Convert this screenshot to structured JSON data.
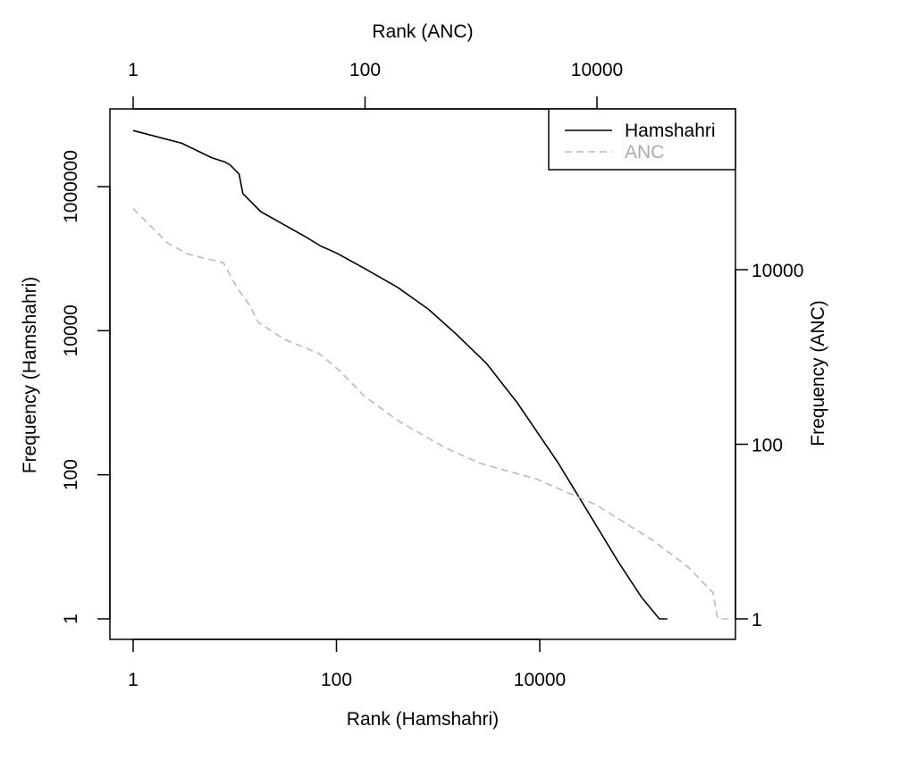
{
  "chart_data": {
    "type": "line",
    "title": "",
    "x_bottom": {
      "label": "Rank (Hamshahri)",
      "scale": "log",
      "range": [
        1,
        300000
      ],
      "ticks": [
        1,
        100,
        10000
      ],
      "tick_labels": [
        "1",
        "100",
        "10000"
      ]
    },
    "x_top": {
      "label": "Rank (ANC)",
      "scale": "log",
      "range": [
        1,
        150000
      ],
      "ticks": [
        1,
        100,
        10000
      ],
      "tick_labels": [
        "1",
        "100",
        "10000"
      ]
    },
    "y_left": {
      "label": "Frequency (Hamshahri)",
      "scale": "log",
      "range": [
        0.6,
        15000000
      ],
      "ticks": [
        1,
        100,
        10000,
        1000000
      ],
      "tick_labels": [
        "1",
        "100",
        "10000",
        "1000000"
      ]
    },
    "y_right": {
      "label": "Frequency (ANC)",
      "scale": "log",
      "range": [
        0.7,
        150000
      ],
      "ticks": [
        1,
        100,
        10000
      ],
      "tick_labels": [
        "1",
        "100",
        "10000"
      ]
    },
    "legend": {
      "placement": "top-right",
      "entries": [
        {
          "name": "Hamshahri",
          "color": "#000000",
          "dash": "solid"
        },
        {
          "name": "ANC",
          "color": "#bbbbbb",
          "dash": "dashed"
        }
      ]
    },
    "series": [
      {
        "name": "Hamshahri",
        "color": "#000000",
        "axes": "bottom-left",
        "x": [
          1,
          3,
          6,
          8,
          9,
          11,
          12,
          18,
          30,
          50,
          70,
          100,
          200,
          400,
          800,
          1500,
          3000,
          6000,
          15000,
          30000,
          60000,
          100000,
          150000,
          180000
        ],
        "y": [
          6000000,
          4000000,
          2500000,
          2200000,
          2000000,
          1500000,
          800000,
          450000,
          300000,
          200000,
          150000,
          120000,
          70000,
          40000,
          20000,
          9000,
          3500,
          1000,
          150,
          30,
          6,
          2,
          1,
          1
        ]
      },
      {
        "name": "ANC",
        "color": "#bbbbbb",
        "axes": "top-right",
        "x": [
          1,
          2,
          3,
          6,
          8,
          10,
          12,
          20,
          40,
          60,
          100,
          200,
          500,
          1000,
          3000,
          10000,
          30000,
          60000,
          100000,
          110000,
          150000
        ],
        "y": [
          50000,
          20000,
          15000,
          12000,
          6000,
          4000,
          2500,
          1600,
          1100,
          700,
          350,
          180,
          90,
          60,
          40,
          20,
          8,
          4,
          2,
          1,
          1
        ]
      }
    ]
  }
}
